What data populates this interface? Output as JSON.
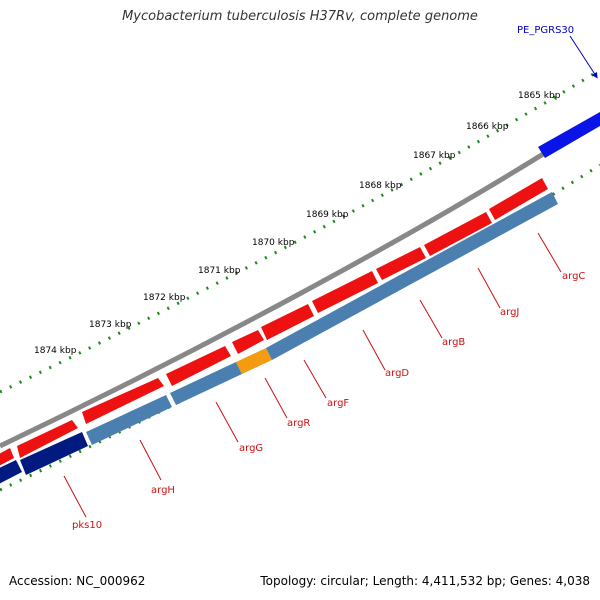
{
  "title": "Mycobacterium tuberculosis H37Rv, complete genome",
  "footer": {
    "accession": "Accession: NC_000962",
    "summary": "Topology: circular; Length: 4,411,532 bp; Genes: 4,038"
  },
  "ruler_labels": [
    "1865 kbp",
    "1866 kbp",
    "1867 kbp",
    "1868 kbp",
    "1869 kbp",
    "1870 kbp",
    "1871 kbp",
    "1872 kbp",
    "1873 kbp",
    "1874 kbp"
  ],
  "gene_labels": [
    "PE_PGRS30",
    "argC",
    "argJ",
    "argB",
    "argD",
    "argF",
    "argR",
    "argG",
    "argH",
    "pks10"
  ],
  "colors": {
    "backbone": "#888888",
    "cds_forward": "#ee1111",
    "gene_track": "#4a7fb0",
    "highlight": "#f39c12",
    "dark_gene": "#001a80",
    "pe_pgrs": "#0a14e6",
    "ruler_ticks": "#1a8a1a",
    "gene_label": "#cc1111",
    "pe_label": "#0000cc"
  }
}
